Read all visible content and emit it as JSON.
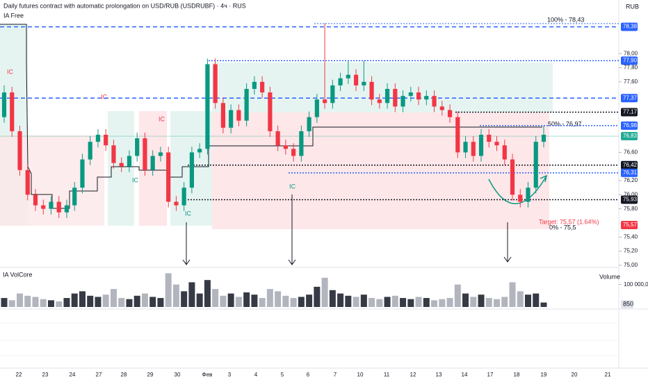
{
  "chart_data": {
    "type": "candlestick",
    "title": "Daily futures contract with automatic prolongation on USD/RUB (USDRUBF) · 4ч · RUS",
    "indicator": "IA Free",
    "currency": "RUB",
    "up_color": "#089981",
    "down_color": "#f23645",
    "ylim": [
      74.97,
      78.76
    ],
    "yticks": [
      {
        "value": 78.0,
        "label": "78,00"
      },
      {
        "value": 77.8,
        "label": "77,80"
      },
      {
        "value": 77.6,
        "label": "77,60"
      },
      {
        "value": 76.6,
        "label": "76,60"
      },
      {
        "value": 76.2,
        "label": "76,20"
      },
      {
        "value": 76.0,
        "label": "76,00"
      },
      {
        "value": 75.8,
        "label": "75,80"
      },
      {
        "value": 75.4,
        "label": "75,40"
      },
      {
        "value": 75.2,
        "label": "75,20"
      },
      {
        "value": 75.0,
        "label": "75,00"
      }
    ],
    "x_labels": [
      "22",
      "23",
      "24",
      "27",
      "28",
      "29",
      "30",
      "Фев",
      "3",
      "4",
      "5",
      "6",
      "7",
      "10",
      "11",
      "12",
      "13",
      "14",
      "17",
      "18",
      "19",
      "20",
      "21"
    ],
    "candles": [
      [
        77.1,
        77.55,
        77.02,
        77.45
      ],
      [
        77.45,
        77.53,
        76.82,
        76.9
      ],
      [
        76.9,
        76.98,
        76.27,
        76.35
      ],
      [
        76.35,
        76.43,
        75.92,
        76.0
      ],
      [
        76.0,
        76.08,
        75.77,
        75.85
      ],
      [
        75.85,
        75.93,
        75.72,
        75.8
      ],
      [
        75.8,
        75.98,
        75.72,
        75.9
      ],
      [
        75.9,
        75.98,
        75.67,
        75.75
      ],
      [
        75.75,
        75.93,
        75.67,
        75.85
      ],
      [
        75.85,
        76.18,
        75.77,
        76.1
      ],
      [
        76.1,
        76.58,
        76.02,
        76.5
      ],
      [
        76.5,
        76.83,
        76.42,
        76.75
      ],
      [
        76.75,
        76.93,
        76.67,
        76.85
      ],
      [
        76.85,
        76.93,
        76.62,
        76.7
      ],
      [
        76.7,
        76.78,
        76.37,
        76.45
      ],
      [
        76.45,
        76.53,
        76.32,
        76.4
      ],
      [
        76.4,
        76.63,
        76.32,
        76.55
      ],
      [
        76.55,
        76.88,
        76.47,
        76.8
      ],
      [
        76.8,
        76.88,
        76.27,
        76.35
      ],
      [
        76.35,
        76.63,
        76.27,
        76.55
      ],
      [
        76.55,
        76.68,
        76.47,
        76.6
      ],
      [
        76.6,
        76.68,
        75.82,
        75.9
      ],
      [
        75.9,
        75.98,
        75.77,
        75.85
      ],
      [
        75.85,
        76.18,
        75.77,
        76.1
      ],
      [
        76.1,
        76.68,
        76.02,
        76.6
      ],
      [
        76.6,
        76.73,
        76.52,
        76.65
      ],
      [
        76.65,
        77.93,
        76.57,
        77.85
      ],
      [
        77.85,
        77.93,
        77.22,
        77.3
      ],
      [
        77.3,
        77.38,
        76.87,
        76.95
      ],
      [
        76.95,
        77.28,
        76.87,
        77.2
      ],
      [
        77.2,
        77.28,
        76.97,
        77.05
      ],
      [
        77.05,
        77.58,
        76.97,
        77.5
      ],
      [
        77.5,
        77.68,
        77.42,
        77.6
      ],
      [
        77.6,
        77.68,
        77.37,
        77.45
      ],
      [
        77.45,
        77.53,
        76.82,
        76.9
      ],
      [
        76.9,
        76.98,
        76.62,
        76.7
      ],
      [
        76.7,
        76.78,
        76.57,
        76.65
      ],
      [
        76.65,
        76.73,
        76.47,
        76.55
      ],
      [
        76.55,
        76.98,
        76.47,
        76.9
      ],
      [
        76.9,
        77.18,
        76.82,
        77.1
      ],
      [
        77.1,
        77.43,
        77.02,
        77.35
      ],
      [
        77.35,
        78.43,
        77.22,
        77.3
      ],
      [
        77.3,
        77.63,
        77.22,
        77.55
      ],
      [
        77.55,
        77.73,
        77.47,
        77.65
      ],
      [
        77.65,
        77.9,
        77.57,
        77.7
      ],
      [
        77.7,
        77.78,
        77.47,
        77.55
      ],
      [
        77.55,
        77.9,
        77.47,
        77.6
      ],
      [
        77.6,
        77.68,
        77.27,
        77.35
      ],
      [
        77.35,
        77.43,
        77.22,
        77.3
      ],
      [
        77.3,
        77.58,
        77.22,
        77.5
      ],
      [
        77.5,
        77.58,
        77.17,
        77.25
      ],
      [
        77.25,
        77.48,
        77.17,
        77.4
      ],
      [
        77.4,
        77.53,
        77.32,
        77.45
      ],
      [
        77.45,
        77.53,
        77.27,
        77.35
      ],
      [
        77.35,
        77.48,
        77.27,
        77.4
      ],
      [
        77.4,
        77.48,
        77.17,
        77.25
      ],
      [
        77.25,
        77.33,
        77.12,
        77.2
      ],
      [
        77.2,
        77.28,
        77.02,
        77.1
      ],
      [
        77.1,
        77.18,
        76.52,
        76.6
      ],
      [
        76.6,
        76.83,
        76.52,
        76.75
      ],
      [
        76.75,
        76.83,
        76.47,
        76.55
      ],
      [
        76.55,
        76.93,
        76.47,
        76.85
      ],
      [
        76.85,
        76.93,
        76.67,
        76.75
      ],
      [
        76.75,
        76.83,
        76.62,
        76.7
      ],
      [
        76.7,
        76.78,
        76.42,
        76.5
      ],
      [
        76.5,
        76.58,
        75.92,
        76.0
      ],
      [
        76.0,
        76.08,
        75.82,
        75.9
      ],
      [
        75.9,
        76.18,
        75.82,
        76.1
      ],
      [
        76.1,
        76.83,
        76.02,
        76.75
      ],
      [
        76.75,
        76.98,
        76.67,
        76.85
      ]
    ],
    "levels": [
      {
        "value": 78.38,
        "label": "78,38",
        "color": "#2962ff",
        "style": "dashed"
      },
      {
        "value": 77.9,
        "label": "77,90",
        "color": "#2962ff",
        "style": "dotted"
      },
      {
        "value": 77.37,
        "label": "77,37",
        "color": "#2962ff",
        "style": "dashed"
      },
      {
        "value": 77.17,
        "label": "77,17",
        "color": "#131722",
        "style": "dotted"
      },
      {
        "value": 76.98,
        "label": "76,98",
        "color": "#2962ff",
        "style": "dotted"
      },
      {
        "value": 76.83,
        "label": "76,83",
        "color": "#22ab94",
        "style": "solid"
      },
      {
        "value": 76.42,
        "label": "76,42",
        "color": "#131722",
        "style": "dotted"
      },
      {
        "value": 76.31,
        "label": "76,31",
        "color": "#2962ff",
        "style": "dotted"
      },
      {
        "value": 75.93,
        "label": "75,93",
        "color": "#131722",
        "style": "dotted"
      },
      {
        "value": 75.57,
        "label": "75,57",
        "color": "#f23645",
        "style": "none"
      }
    ],
    "annotations": [
      "100% - 78,43",
      "50% - 76,97",
      "0% - 75,5",
      "Target: 75,57 (1.64%)"
    ],
    "signals": [
      "IC",
      "IC",
      "IC",
      "IC",
      "IC",
      "IC"
    ],
    "volume": {
      "title": "IA VolCore",
      "label": "Volume",
      "ylim": [
        0,
        170000
      ],
      "yticks": [
        {
          "value": 100000,
          "label": "100 000,00"
        }
      ],
      "last_label": "850",
      "up_color": "#363a45",
      "down_color": "#b2b5be",
      "values": [
        40000,
        30000,
        60000,
        50000,
        45000,
        35000,
        30000,
        25000,
        40000,
        60000,
        70000,
        50000,
        45000,
        55000,
        80000,
        40000,
        35000,
        50000,
        60000,
        45000,
        40000,
        150000,
        100000,
        70000,
        110000,
        60000,
        120000,
        80000,
        50000,
        60000,
        45000,
        65000,
        55000,
        40000,
        80000,
        70000,
        50000,
        40000,
        45000,
        55000,
        90000,
        130000,
        75000,
        60000,
        50000,
        45000,
        55000,
        40000,
        35000,
        45000,
        50000,
        40000,
        35000,
        45000,
        40000,
        30000,
        35000,
        40000,
        100000,
        60000,
        45000,
        55000,
        40000,
        35000,
        45000,
        110000,
        70000,
        55000,
        60000,
        20000
      ]
    }
  }
}
